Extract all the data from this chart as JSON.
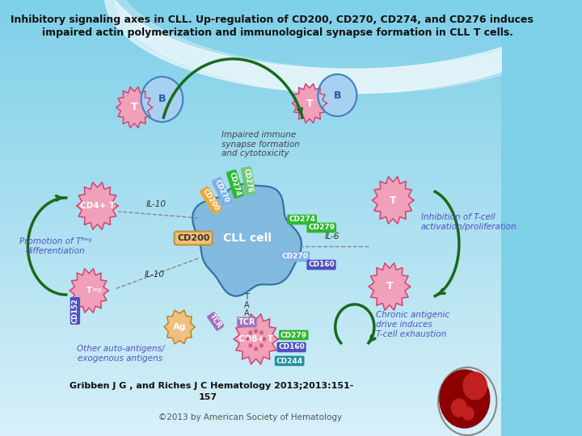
{
  "title_line1": "Inhibitory signaling axes in CLL. Up-regulation of CD​200, CD​270, CD​274, and CD​276 induces",
  "title_line2": "    impaired actin polymerization and immunological synapse formation in CLL T cells.",
  "citation": "Gribben J G , and Riches J C Hematology 2013;2013:151-\n157",
  "copyright": "©2013 by American Society of Hematology",
  "bg_top_color": "#7ecfe8",
  "bg_bottom_color": "#d8f0f8",
  "panel_bg": "#f0f8fc",
  "cll_cell_color": "#80b8e0",
  "t_cell_color": "#f0a0b8",
  "t_cell_border": "#cc4070",
  "b_cell_color": "#a8d0f0",
  "b_cell_border": "#4080c0",
  "cd8t_color": "#f0a0b8",
  "treg_color": "#f0a0b8",
  "cd4t_color": "#f0a0b8",
  "ag_color": "#f0c080",
  "arrow_color": "#1a6a1a",
  "label_color": "#5050c0",
  "cd200_color": "#e8a840",
  "cd274_color": "#40b840",
  "cd270_color": "#80b0e8",
  "cd276_color": "#80c880",
  "cd279_color": "#40b840",
  "cd160_color": "#5050c0",
  "cd152_color": "#5050c0",
  "tcr_color": "#9070c0",
  "dashed_color": "#888888"
}
